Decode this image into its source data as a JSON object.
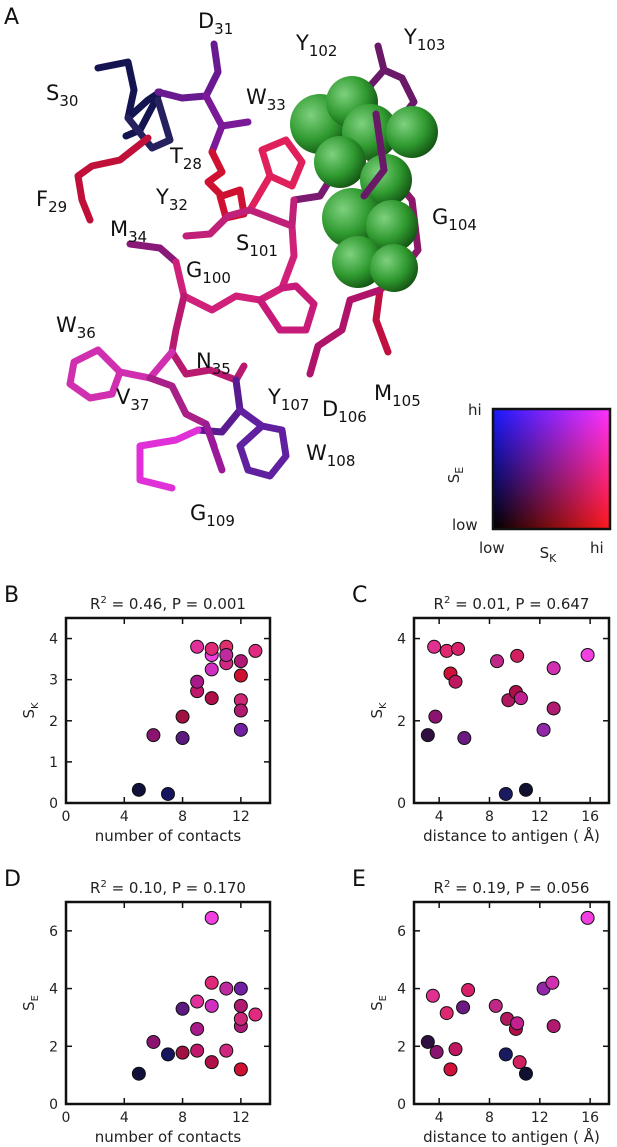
{
  "panel_letters": [
    "A",
    "B",
    "C",
    "D",
    "E"
  ],
  "residues": [
    {
      "base": "D",
      "num": "31"
    },
    {
      "base": "Y",
      "num": "102"
    },
    {
      "base": "Y",
      "num": "103"
    },
    {
      "base": "S",
      "num": "30"
    },
    {
      "base": "W",
      "num": "33"
    },
    {
      "base": "T",
      "num": "28"
    },
    {
      "base": "Y",
      "num": "32"
    },
    {
      "base": "F",
      "num": "29"
    },
    {
      "base": "G",
      "num": "104"
    },
    {
      "base": "M",
      "num": "34"
    },
    {
      "base": "S",
      "num": "101"
    },
    {
      "base": "G",
      "num": "100"
    },
    {
      "base": "W",
      "num": "36"
    },
    {
      "base": "N",
      "num": "35"
    },
    {
      "base": "M",
      "num": "105"
    },
    {
      "base": "Y",
      "num": "107"
    },
    {
      "base": "D",
      "num": "106"
    },
    {
      "base": "V",
      "num": "37"
    },
    {
      "base": "W",
      "num": "108"
    },
    {
      "base": "G",
      "num": "109"
    }
  ],
  "legend": {
    "y_axis_label": "S",
    "y_axis_sub": "E",
    "x_axis_label": "S",
    "x_axis_sub": "K",
    "hi_top": "hi",
    "low_left": "low",
    "low_bottom": "low",
    "hi_right": "hi",
    "colors": {
      "bottom_left": "#000000",
      "top_left": "#1a1aff",
      "bottom_right": "#ff1a1a",
      "top_right": "#ff33ff"
    }
  },
  "chart_data": [
    {
      "panel": "B",
      "type": "scatter",
      "title_prefix": "R",
      "title_sup": "2",
      "title_rest": " = 0.46, P = 0.001",
      "xlabel": "number of contacts",
      "ylabel": "S",
      "ylabel_sub": "K",
      "xlim": [
        0,
        14
      ],
      "ylim": [
        0,
        4.5
      ],
      "xticks": [
        "0",
        "4",
        "8",
        "12"
      ],
      "xtick_values": [
        0,
        4,
        8,
        12
      ],
      "yticks": [
        "0",
        "1",
        "2",
        "3",
        "4"
      ],
      "ytick_values": [
        0,
        1,
        2,
        3,
        4
      ],
      "points": [
        {
          "x": 5,
          "y": 0.32,
          "color": "#10103a"
        },
        {
          "x": 7,
          "y": 0.22,
          "color": "#151560"
        },
        {
          "x": 6,
          "y": 1.65,
          "color": "#8a1470"
        },
        {
          "x": 8,
          "y": 1.58,
          "color": "#5a1a80"
        },
        {
          "x": 8,
          "y": 2.1,
          "color": "#a01040"
        },
        {
          "x": 9,
          "y": 2.72,
          "color": "#c0186a"
        },
        {
          "x": 9,
          "y": 2.95,
          "color": "#a81a8a"
        },
        {
          "x": 9,
          "y": 3.8,
          "color": "#e0309a"
        },
        {
          "x": 10,
          "y": 2.55,
          "color": "#b0104a"
        },
        {
          "x": 10,
          "y": 3.25,
          "color": "#d030c0"
        },
        {
          "x": 10,
          "y": 3.6,
          "color": "#f040e0"
        },
        {
          "x": 10,
          "y": 3.75,
          "color": "#e02878"
        },
        {
          "x": 11,
          "y": 3.4,
          "color": "#d02880"
        },
        {
          "x": 11,
          "y": 3.8,
          "color": "#e0306a"
        },
        {
          "x": 11,
          "y": 3.6,
          "color": "#c02aa0"
        },
        {
          "x": 12,
          "y": 3.45,
          "color": "#b01878"
        },
        {
          "x": 12,
          "y": 3.1,
          "color": "#d01030"
        },
        {
          "x": 12,
          "y": 2.5,
          "color": "#d02878"
        },
        {
          "x": 12,
          "y": 2.25,
          "color": "#b01a70"
        },
        {
          "x": 12,
          "y": 1.78,
          "color": "#7020a0"
        },
        {
          "x": 13,
          "y": 3.7,
          "color": "#e02a80"
        }
      ]
    },
    {
      "panel": "C",
      "type": "scatter",
      "title_prefix": "R",
      "title_sup": "2",
      "title_rest": " = 0.01, P = 0.647",
      "xlabel": "distance to antigen ( Å)",
      "ylabel": "S",
      "ylabel_sub": "K",
      "xlim": [
        2,
        17.5
      ],
      "ylim": [
        0,
        4.5
      ],
      "xticks": [
        "4",
        "8",
        "12",
        "16"
      ],
      "xtick_values": [
        4,
        8,
        12,
        16
      ],
      "yticks": [
        "0",
        "2",
        "4"
      ],
      "ytick_values": [
        0,
        2,
        4
      ],
      "points": [
        {
          "x": 3.1,
          "y": 1.65,
          "color": "#301040"
        },
        {
          "x": 3.6,
          "y": 3.8,
          "color": "#e03090"
        },
        {
          "x": 3.7,
          "y": 2.1,
          "color": "#8a1470"
        },
        {
          "x": 4.6,
          "y": 3.7,
          "color": "#e02870"
        },
        {
          "x": 4.9,
          "y": 3.15,
          "color": "#d01038"
        },
        {
          "x": 5.3,
          "y": 2.95,
          "color": "#c01860"
        },
        {
          "x": 5.5,
          "y": 3.75,
          "color": "#d8206a"
        },
        {
          "x": 6.0,
          "y": 1.58,
          "color": "#6a1a80"
        },
        {
          "x": 8.6,
          "y": 3.45,
          "color": "#c02888"
        },
        {
          "x": 9.3,
          "y": 0.22,
          "color": "#1a1a60"
        },
        {
          "x": 9.5,
          "y": 2.5,
          "color": "#b01860"
        },
        {
          "x": 10.1,
          "y": 2.7,
          "color": "#b0104a"
        },
        {
          "x": 10.2,
          "y": 3.58,
          "color": "#d02060"
        },
        {
          "x": 10.5,
          "y": 2.55,
          "color": "#c02090"
        },
        {
          "x": 10.9,
          "y": 0.32,
          "color": "#101030"
        },
        {
          "x": 12.3,
          "y": 1.78,
          "color": "#9028a8"
        },
        {
          "x": 13.1,
          "y": 3.28,
          "color": "#d030b0"
        },
        {
          "x": 13.1,
          "y": 2.3,
          "color": "#b01a70"
        },
        {
          "x": 15.8,
          "y": 3.6,
          "color": "#f040e0"
        }
      ]
    },
    {
      "panel": "D",
      "type": "scatter",
      "title_prefix": "R",
      "title_sup": "2",
      "title_rest": " = 0.10, P = 0.170",
      "xlabel": "number of contacts",
      "ylabel": "S",
      "ylabel_sub": "E",
      "xlim": [
        0,
        14
      ],
      "ylim": [
        0,
        7
      ],
      "xticks": [
        "0",
        "4",
        "8",
        "12"
      ],
      "xtick_values": [
        0,
        4,
        8,
        12
      ],
      "yticks": [
        "0",
        "2",
        "4",
        "6"
      ],
      "ytick_values": [
        0,
        2,
        4,
        6
      ],
      "points": [
        {
          "x": 5,
          "y": 1.05,
          "color": "#10103a"
        },
        {
          "x": 6,
          "y": 2.15,
          "color": "#8a1470"
        },
        {
          "x": 7,
          "y": 1.72,
          "color": "#151560"
        },
        {
          "x": 8,
          "y": 1.78,
          "color": "#a01040"
        },
        {
          "x": 8,
          "y": 3.3,
          "color": "#5a1a80"
        },
        {
          "x": 9,
          "y": 1.85,
          "color": "#c0186a"
        },
        {
          "x": 9,
          "y": 2.6,
          "color": "#a81a8a"
        },
        {
          "x": 9,
          "y": 3.55,
          "color": "#e0309a"
        },
        {
          "x": 10,
          "y": 1.45,
          "color": "#b0104a"
        },
        {
          "x": 10,
          "y": 3.4,
          "color": "#d030c0"
        },
        {
          "x": 10,
          "y": 4.2,
          "color": "#e02878"
        },
        {
          "x": 10,
          "y": 6.45,
          "color": "#f040e0"
        },
        {
          "x": 11,
          "y": 1.85,
          "color": "#d02880"
        },
        {
          "x": 11,
          "y": 4.0,
          "color": "#c02aa0"
        },
        {
          "x": 12,
          "y": 1.2,
          "color": "#d01030"
        },
        {
          "x": 12,
          "y": 2.7,
          "color": "#b01878"
        },
        {
          "x": 12,
          "y": 2.95,
          "color": "#d02878"
        },
        {
          "x": 12,
          "y": 3.4,
          "color": "#b01a70"
        },
        {
          "x": 12,
          "y": 4.0,
          "color": "#7020a0"
        },
        {
          "x": 13,
          "y": 3.1,
          "color": "#e02a80"
        }
      ]
    },
    {
      "panel": "E",
      "type": "scatter",
      "title_prefix": "R",
      "title_sup": "2",
      "title_rest": " = 0.19, P = 0.056",
      "xlabel": "distance to antigen ( Å)",
      "ylabel": "S",
      "ylabel_sub": "E",
      "xlim": [
        2,
        17.5
      ],
      "ylim": [
        0,
        7
      ],
      "xticks": [
        "4",
        "8",
        "12",
        "16"
      ],
      "xtick_values": [
        4,
        8,
        12,
        16
      ],
      "yticks": [
        "0",
        "2",
        "4",
        "6"
      ],
      "ytick_values": [
        0,
        2,
        4,
        6
      ],
      "points": [
        {
          "x": 3.1,
          "y": 2.15,
          "color": "#301040"
        },
        {
          "x": 3.5,
          "y": 3.75,
          "color": "#e03090"
        },
        {
          "x": 3.8,
          "y": 1.8,
          "color": "#8a1470"
        },
        {
          "x": 4.6,
          "y": 3.15,
          "color": "#e02870"
        },
        {
          "x": 4.9,
          "y": 1.2,
          "color": "#d01038"
        },
        {
          "x": 5.3,
          "y": 1.9,
          "color": "#c01860"
        },
        {
          "x": 5.9,
          "y": 3.35,
          "color": "#6a1a80"
        },
        {
          "x": 6.3,
          "y": 3.95,
          "color": "#d8206a"
        },
        {
          "x": 8.5,
          "y": 3.4,
          "color": "#c02888"
        },
        {
          "x": 9.3,
          "y": 1.72,
          "color": "#1a1a60"
        },
        {
          "x": 9.4,
          "y": 2.95,
          "color": "#b01860"
        },
        {
          "x": 10.1,
          "y": 2.6,
          "color": "#b0104a"
        },
        {
          "x": 10.2,
          "y": 2.8,
          "color": "#c02090"
        },
        {
          "x": 10.4,
          "y": 1.45,
          "color": "#d02060"
        },
        {
          "x": 10.9,
          "y": 1.05,
          "color": "#101030"
        },
        {
          "x": 12.3,
          "y": 4.0,
          "color": "#9028a8"
        },
        {
          "x": 13.0,
          "y": 4.2,
          "color": "#d030b0"
        },
        {
          "x": 13.1,
          "y": 2.7,
          "color": "#b01a70"
        },
        {
          "x": 15.8,
          "y": 6.45,
          "color": "#f040e0"
        }
      ]
    }
  ]
}
